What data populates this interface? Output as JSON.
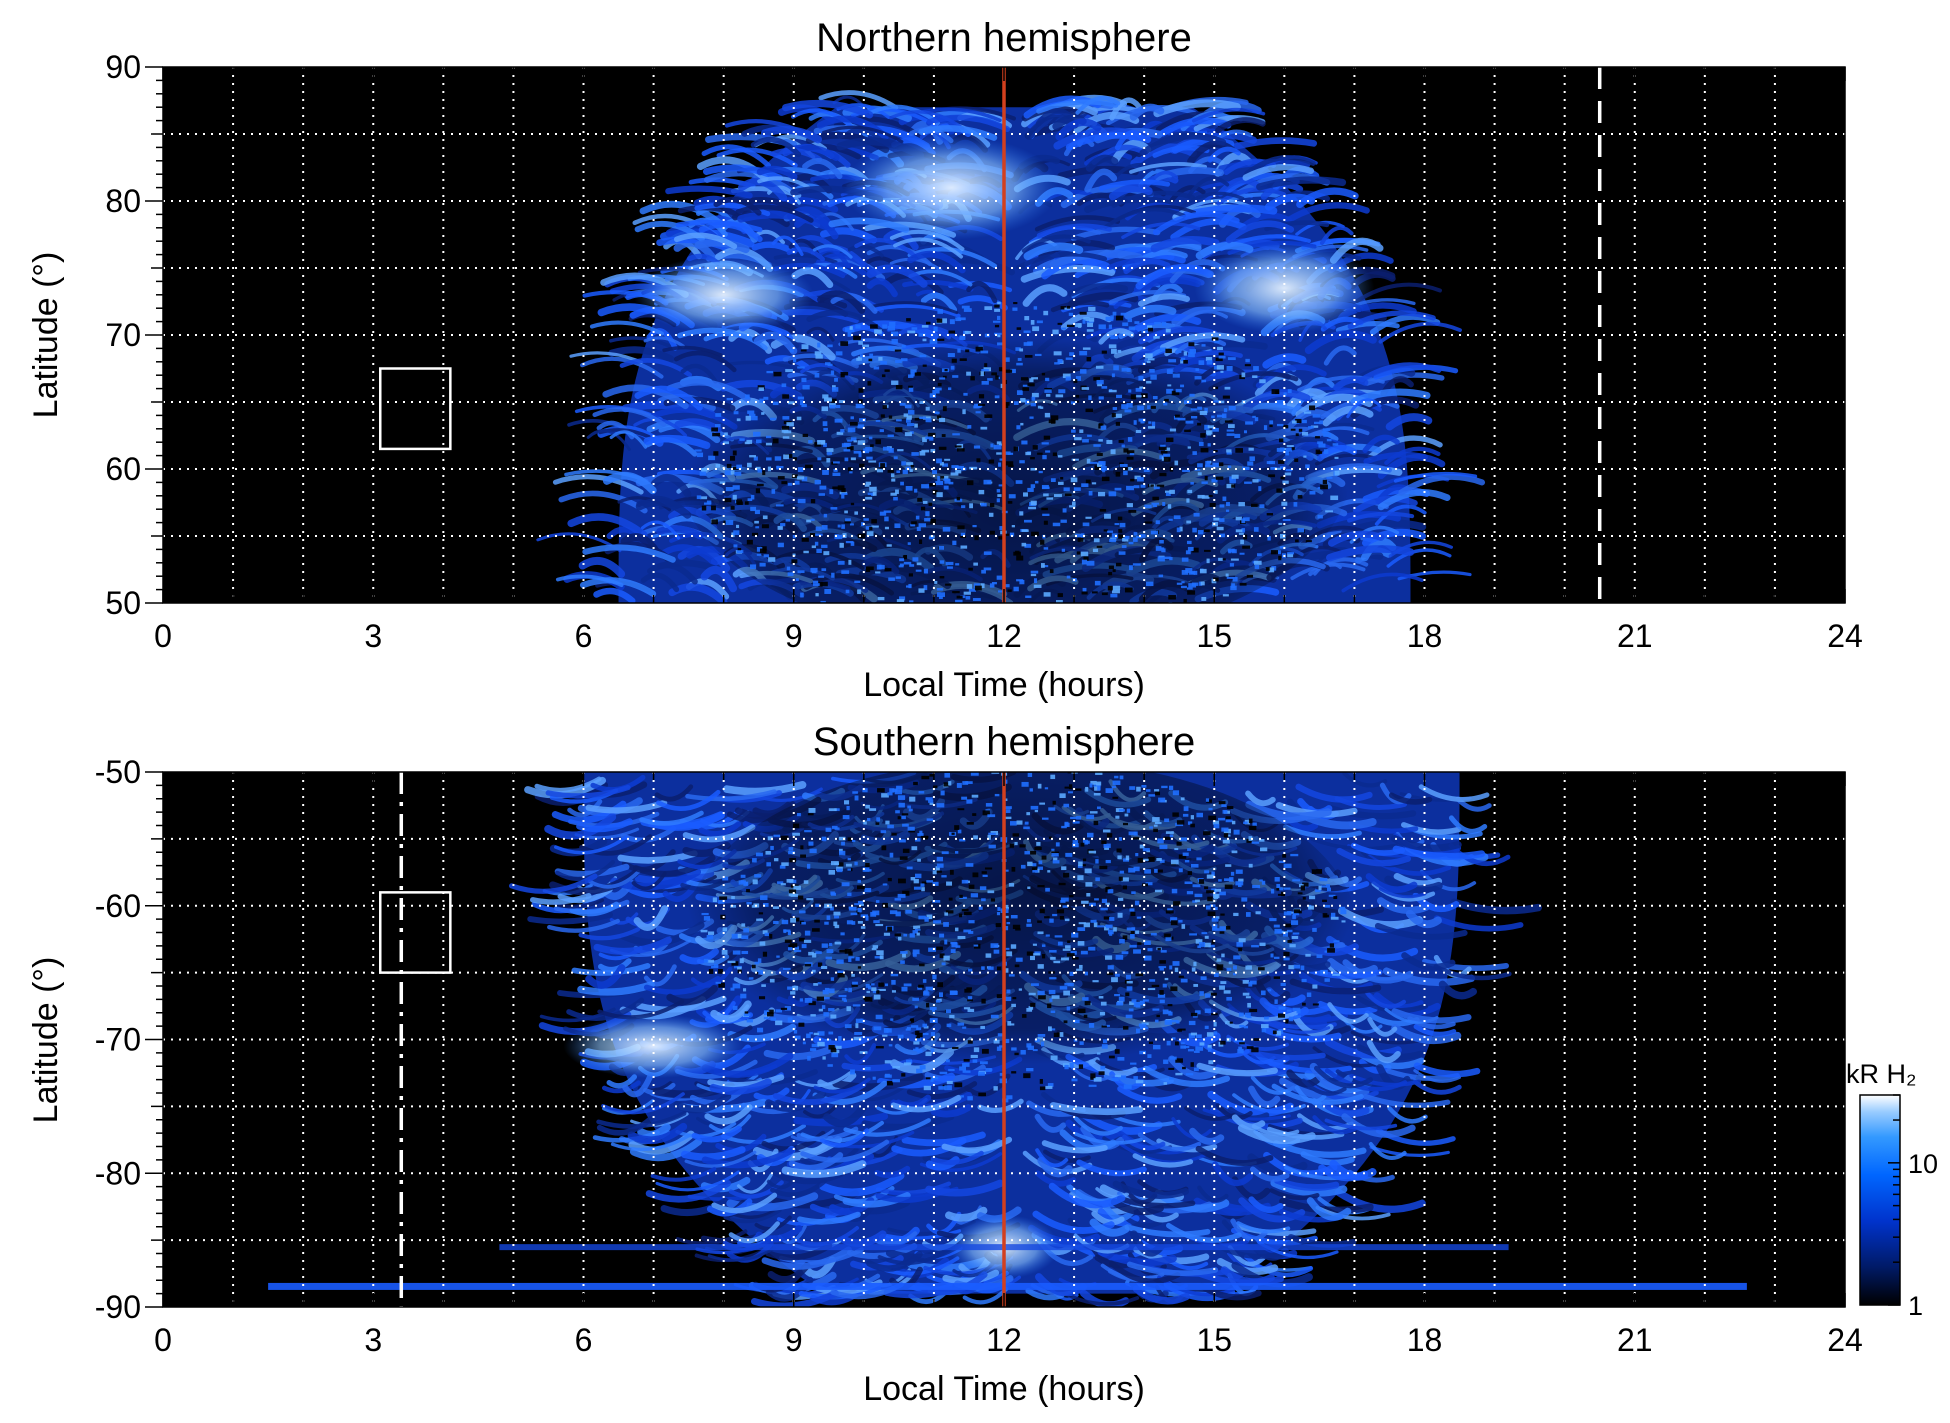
{
  "chart_data": [
    {
      "type": "heatmap",
      "id": "north",
      "title": "Northern hemisphere",
      "xlabel": "Local Time (hours)",
      "ylabel": "Latitude (°)",
      "xlim": [
        0,
        24
      ],
      "ylim": [
        50,
        90
      ],
      "x_ticks": [
        0,
        3,
        6,
        9,
        12,
        15,
        18,
        21,
        24
      ],
      "y_ticks": [
        50,
        60,
        70,
        80,
        90
      ],
      "grid": true,
      "grid_style": "white dotted, every 1 h and every 5°",
      "reference_lines": [
        {
          "x": 12.0,
          "color": "#d2401e",
          "style": "solid"
        },
        {
          "x": 20.5,
          "color": "#ffffff",
          "style": "dashed"
        }
      ],
      "box": {
        "x": [
          3.1,
          4.1
        ],
        "y": [
          61.5,
          67.5
        ]
      },
      "emission_coverage": {
        "lt_range": [
          6.5,
          17.8
        ],
        "lat_range": [
          50,
          87
        ]
      },
      "bright_regions": [
        {
          "lt": [
            10.0,
            12.5
          ],
          "lat": [
            78,
            84
          ]
        },
        {
          "lt": [
            7.0,
            9.0
          ],
          "lat": [
            71,
            75
          ]
        },
        {
          "lt": [
            15.0,
            17.0
          ],
          "lat": [
            71,
            76
          ]
        }
      ]
    },
    {
      "type": "heatmap",
      "id": "south",
      "title": "Southern hemisphere",
      "xlabel": "Local Time (hours)",
      "ylabel": "Latitude (°)",
      "xlim": [
        0,
        24
      ],
      "ylim": [
        -90,
        -50
      ],
      "x_ticks": [
        0,
        3,
        6,
        9,
        12,
        15,
        18,
        21,
        24
      ],
      "y_ticks": [
        -50,
        -60,
        -70,
        -80,
        -90
      ],
      "grid": true,
      "grid_style": "white dotted, every 1 h and every 5°",
      "reference_lines": [
        {
          "x": 12.0,
          "color": "#d2401e",
          "style": "solid"
        },
        {
          "x": 3.4,
          "color": "#ffffff",
          "style": "dash-dot"
        }
      ],
      "box": {
        "x": [
          3.1,
          4.1
        ],
        "y": [
          -65,
          -59
        ]
      },
      "emission_coverage": {
        "lt_range": [
          6.0,
          18.5
        ],
        "lat_range": [
          -89,
          -50
        ]
      },
      "bright_regions": [
        {
          "lt": [
            6.0,
            8.0
          ],
          "lat": [
            -72,
            -69
          ]
        },
        {
          "lt": [
            11.5,
            12.5
          ],
          "lat": [
            -87,
            -84
          ]
        }
      ]
    }
  ],
  "colorbar": {
    "title": "kR H₂",
    "tick_labels": [
      "10",
      "1"
    ],
    "tick_values": [
      10,
      1
    ],
    "range": [
      1,
      30
    ],
    "scale": "log",
    "colors": [
      "#000000",
      "#001a66",
      "#0033cc",
      "#0066ff",
      "#3399ff",
      "#99ccff",
      "#ffffff"
    ]
  },
  "colors": {
    "background": "#000000",
    "emission_dark": "#0a2a8a",
    "emission_mid": "#1f6fff",
    "emission_bright": "#cfe6ff",
    "noon_line": "#d2401e"
  }
}
